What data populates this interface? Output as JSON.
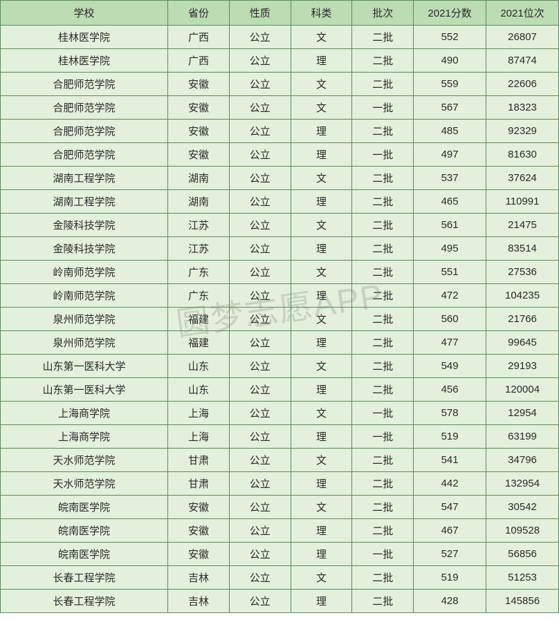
{
  "watermark_text": "圆梦志愿APP",
  "table": {
    "columns": [
      "学校",
      "省份",
      "性质",
      "科类",
      "批次",
      "2021分数",
      "2021位次"
    ],
    "column_classes": [
      "col-school",
      "col-province",
      "col-nature",
      "col-subject",
      "col-batch",
      "col-score",
      "col-rank"
    ],
    "header_bg": "#bcdcb3",
    "cell_bg": "#e3f0db",
    "border_color": "#5a8a5a",
    "font_size": 15,
    "rows": [
      [
        "桂林医学院",
        "广西",
        "公立",
        "文",
        "二批",
        "552",
        "26807"
      ],
      [
        "桂林医学院",
        "广西",
        "公立",
        "理",
        "二批",
        "490",
        "87474"
      ],
      [
        "合肥师范学院",
        "安徽",
        "公立",
        "文",
        "二批",
        "559",
        "22606"
      ],
      [
        "合肥师范学院",
        "安徽",
        "公立",
        "文",
        "一批",
        "567",
        "18323"
      ],
      [
        "合肥师范学院",
        "安徽",
        "公立",
        "理",
        "二批",
        "485",
        "92329"
      ],
      [
        "合肥师范学院",
        "安徽",
        "公立",
        "理",
        "一批",
        "497",
        "81630"
      ],
      [
        "湖南工程学院",
        "湖南",
        "公立",
        "文",
        "二批",
        "537",
        "37624"
      ],
      [
        "湖南工程学院",
        "湖南",
        "公立",
        "理",
        "二批",
        "465",
        "110991"
      ],
      [
        "金陵科技学院",
        "江苏",
        "公立",
        "文",
        "二批",
        "561",
        "21475"
      ],
      [
        "金陵科技学院",
        "江苏",
        "公立",
        "理",
        "二批",
        "495",
        "83514"
      ],
      [
        "岭南师范学院",
        "广东",
        "公立",
        "文",
        "二批",
        "551",
        "27536"
      ],
      [
        "岭南师范学院",
        "广东",
        "公立",
        "理",
        "二批",
        "472",
        "104235"
      ],
      [
        "泉州师范学院",
        "福建",
        "公立",
        "文",
        "二批",
        "560",
        "21766"
      ],
      [
        "泉州师范学院",
        "福建",
        "公立",
        "理",
        "二批",
        "477",
        "99645"
      ],
      [
        "山东第一医科大学",
        "山东",
        "公立",
        "文",
        "二批",
        "549",
        "29193"
      ],
      [
        "山东第一医科大学",
        "山东",
        "公立",
        "理",
        "二批",
        "456",
        "120004"
      ],
      [
        "上海商学院",
        "上海",
        "公立",
        "文",
        "一批",
        "578",
        "12954"
      ],
      [
        "上海商学院",
        "上海",
        "公立",
        "理",
        "一批",
        "519",
        "63199"
      ],
      [
        "天水师范学院",
        "甘肃",
        "公立",
        "文",
        "二批",
        "541",
        "34796"
      ],
      [
        "天水师范学院",
        "甘肃",
        "公立",
        "理",
        "二批",
        "442",
        "132954"
      ],
      [
        "皖南医学院",
        "安徽",
        "公立",
        "文",
        "二批",
        "547",
        "30542"
      ],
      [
        "皖南医学院",
        "安徽",
        "公立",
        "理",
        "二批",
        "467",
        "109528"
      ],
      [
        "皖南医学院",
        "安徽",
        "公立",
        "理",
        "一批",
        "527",
        "56856"
      ],
      [
        "长春工程学院",
        "吉林",
        "公立",
        "文",
        "二批",
        "519",
        "51253"
      ],
      [
        "长春工程学院",
        "吉林",
        "公立",
        "理",
        "二批",
        "428",
        "145856"
      ]
    ]
  }
}
